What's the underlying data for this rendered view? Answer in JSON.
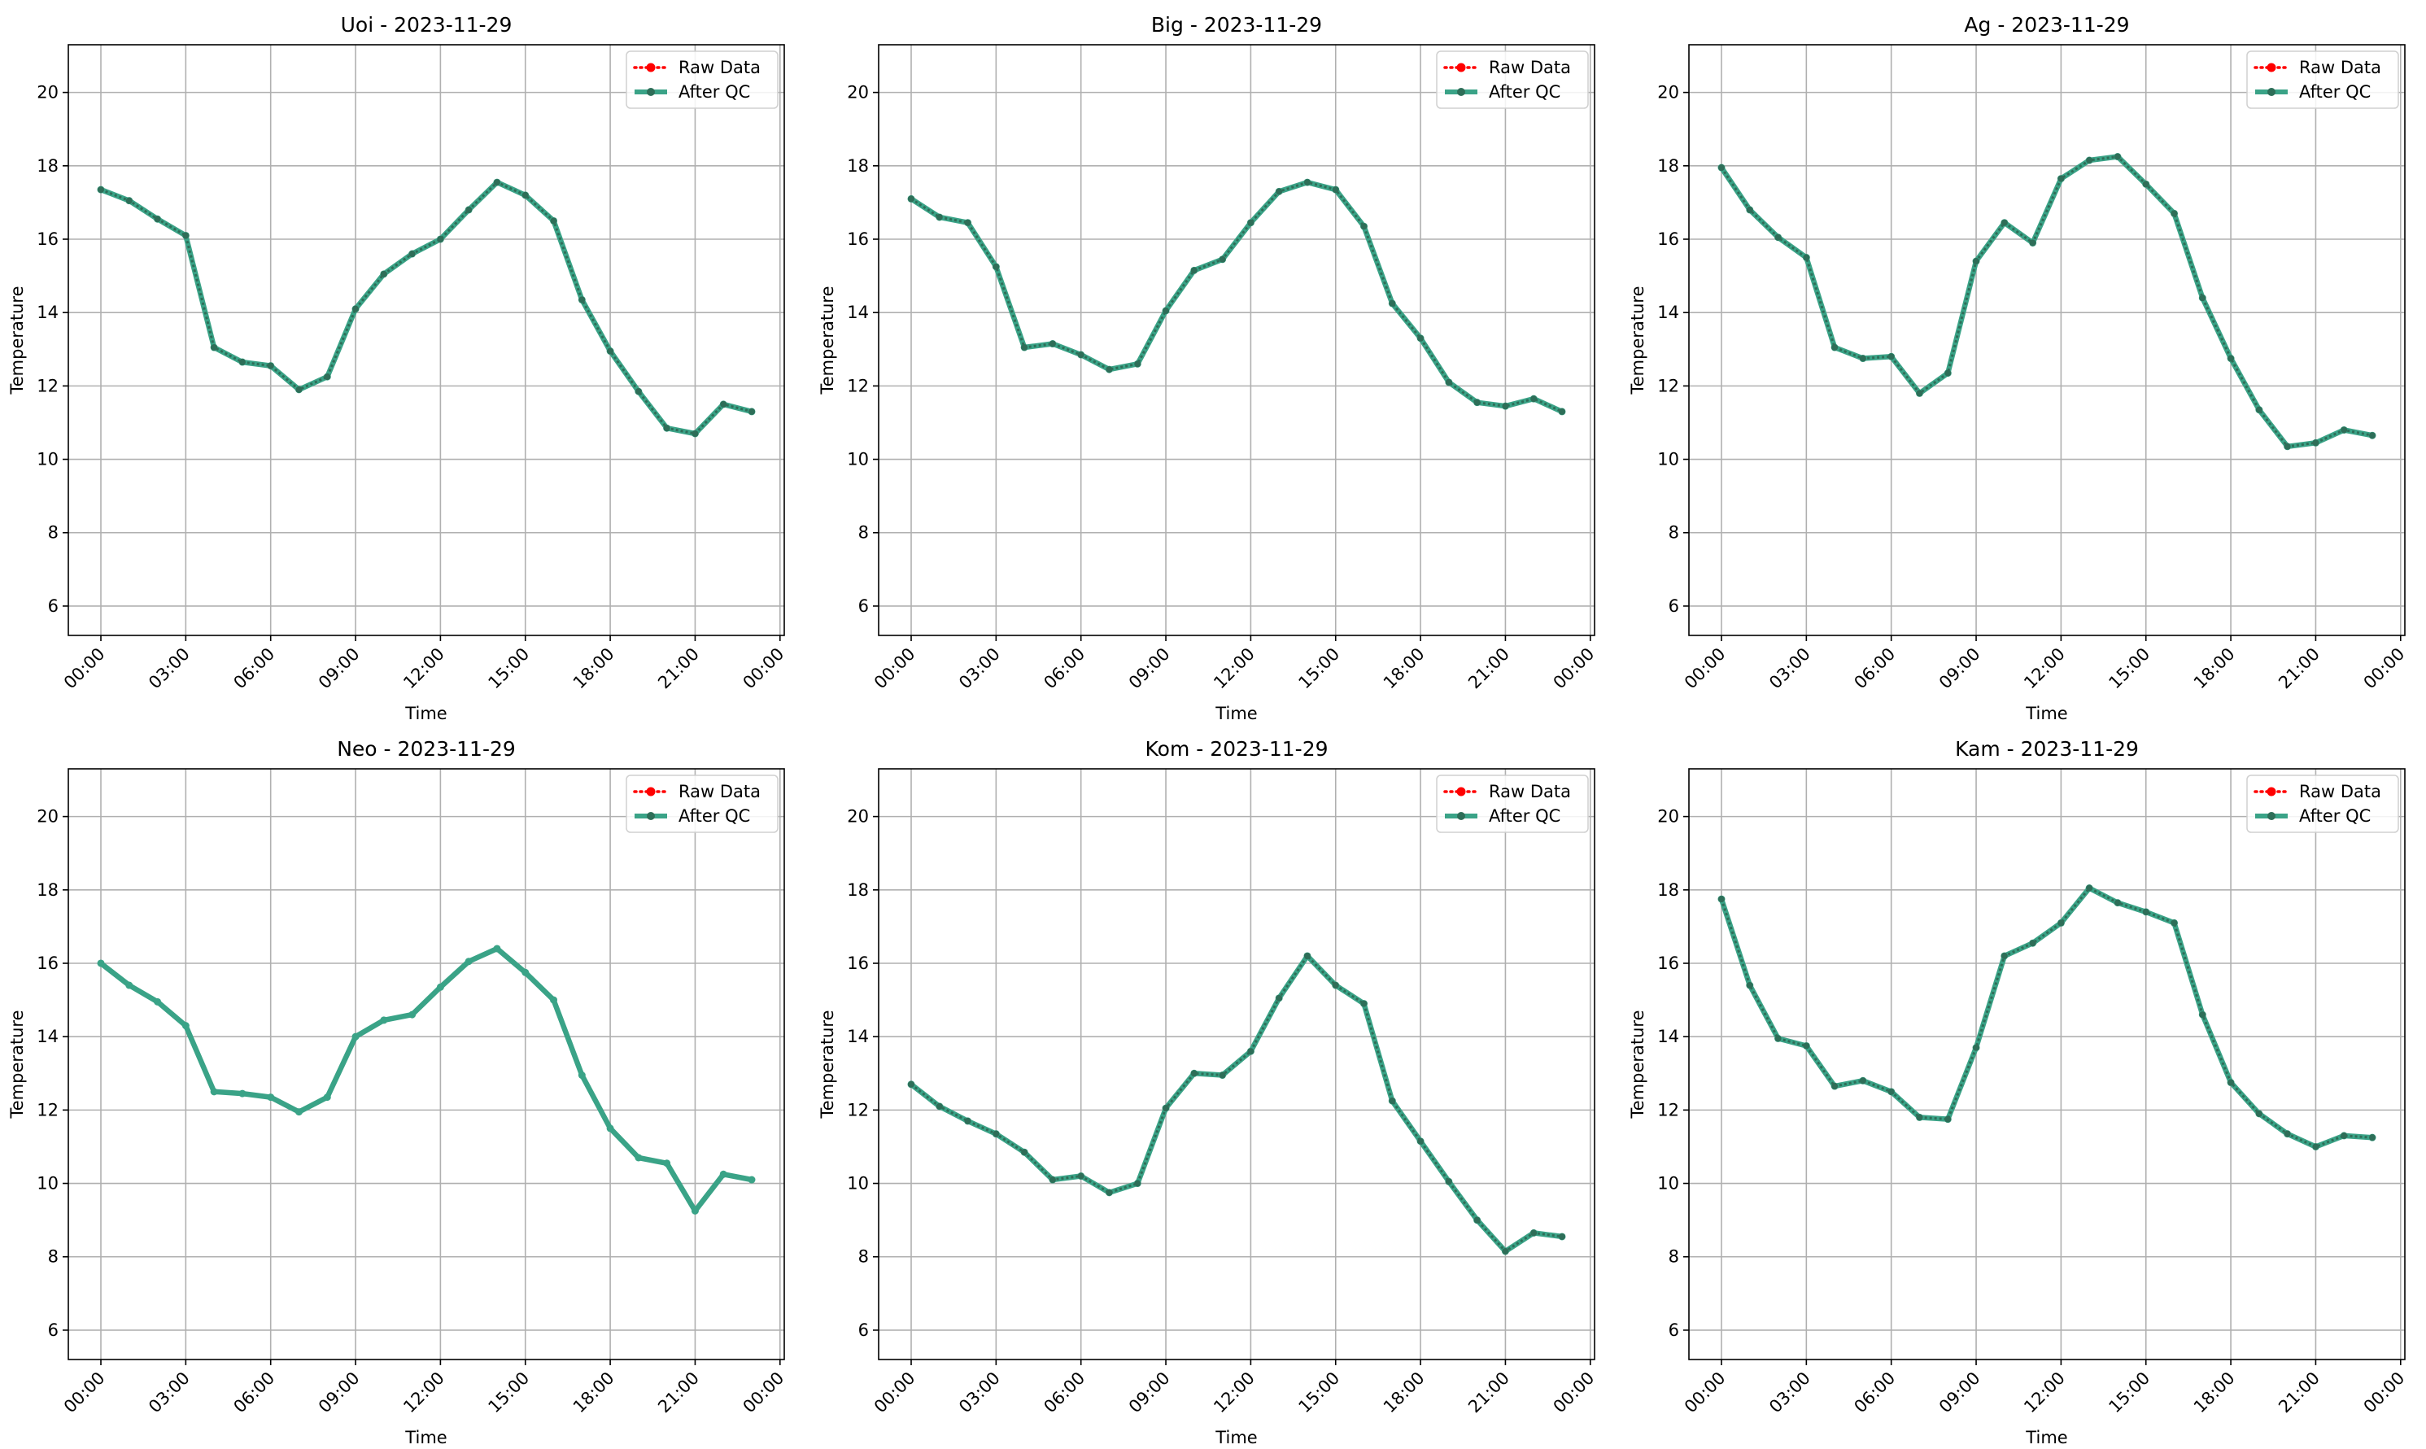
{
  "legend": {
    "raw_label": "Raw Data",
    "qc_label": "After QC",
    "placement": "upper-right"
  },
  "colors": {
    "raw": "#ff0000",
    "qc": "#3aa387",
    "qc_overlay": "#2e6e58",
    "grid": "#b0b0b0"
  },
  "chart_data": [
    {
      "type": "line",
      "title": "Uoi - 2023-11-29",
      "xlabel": "Time",
      "ylabel": "Temperature",
      "xticks": [
        "00:00",
        "03:00",
        "06:00",
        "09:00",
        "12:00",
        "15:00",
        "18:00",
        "21:00",
        "00:00"
      ],
      "xlim_hours": [
        -1.15,
        24.15
      ],
      "ylim": [
        5.2,
        21.3
      ],
      "yticks": [
        6,
        8,
        10,
        12,
        14,
        16,
        18,
        20
      ],
      "grid": true,
      "raw_visible": true,
      "x": [
        0,
        1,
        2,
        3,
        4,
        5,
        6,
        7,
        8,
        9,
        10,
        11,
        12,
        13,
        14,
        15,
        16,
        17,
        18,
        19,
        20,
        21,
        22,
        23
      ],
      "series": [
        {
          "name": "Raw Data",
          "values": [
            17.35,
            17.05,
            16.55,
            16.1,
            13.05,
            12.65,
            12.55,
            11.9,
            12.25,
            14.1,
            15.05,
            15.6,
            16.0,
            16.8,
            17.55,
            17.2,
            16.5,
            14.35,
            12.95,
            11.85,
            10.85,
            10.7,
            11.5,
            11.3
          ]
        },
        {
          "name": "After QC",
          "values": [
            17.35,
            17.05,
            16.55,
            16.1,
            13.05,
            12.65,
            12.55,
            11.9,
            12.25,
            14.1,
            15.05,
            15.6,
            16.0,
            16.8,
            17.55,
            17.2,
            16.5,
            14.35,
            12.95,
            11.85,
            10.85,
            10.7,
            11.5,
            11.3
          ]
        }
      ]
    },
    {
      "type": "line",
      "title": "Big - 2023-11-29",
      "xlabel": "Time",
      "ylabel": "Temperature",
      "xticks": [
        "00:00",
        "03:00",
        "06:00",
        "09:00",
        "12:00",
        "15:00",
        "18:00",
        "21:00",
        "00:00"
      ],
      "xlim_hours": [
        -1.15,
        24.15
      ],
      "ylim": [
        5.2,
        21.3
      ],
      "yticks": [
        6,
        8,
        10,
        12,
        14,
        16,
        18,
        20
      ],
      "grid": true,
      "raw_visible": true,
      "x": [
        0,
        1,
        2,
        3,
        4,
        5,
        6,
        7,
        8,
        9,
        10,
        11,
        12,
        13,
        14,
        15,
        16,
        17,
        18,
        19,
        20,
        21,
        22,
        23
      ],
      "series": [
        {
          "name": "Raw Data",
          "values": [
            17.1,
            16.6,
            16.45,
            15.25,
            13.05,
            13.15,
            12.85,
            12.45,
            12.6,
            14.05,
            15.15,
            15.45,
            16.45,
            17.3,
            17.55,
            17.35,
            16.35,
            14.25,
            13.3,
            12.1,
            11.55,
            11.45,
            11.65,
            11.3
          ]
        },
        {
          "name": "After QC",
          "values": [
            17.1,
            16.6,
            16.45,
            15.25,
            13.05,
            13.15,
            12.85,
            12.45,
            12.6,
            14.05,
            15.15,
            15.45,
            16.45,
            17.3,
            17.55,
            17.35,
            16.35,
            14.25,
            13.3,
            12.1,
            11.55,
            11.45,
            11.65,
            11.3
          ]
        }
      ]
    },
    {
      "type": "line",
      "title": "Ag - 2023-11-29",
      "xlabel": "Time",
      "ylabel": "Temperature",
      "xticks": [
        "00:00",
        "03:00",
        "06:00",
        "09:00",
        "12:00",
        "15:00",
        "18:00",
        "21:00",
        "00:00"
      ],
      "xlim_hours": [
        -1.15,
        24.15
      ],
      "ylim": [
        5.2,
        21.3
      ],
      "yticks": [
        6,
        8,
        10,
        12,
        14,
        16,
        18,
        20
      ],
      "grid": true,
      "raw_visible": true,
      "x": [
        0,
        1,
        2,
        3,
        4,
        5,
        6,
        7,
        8,
        9,
        10,
        11,
        12,
        13,
        14,
        15,
        16,
        17,
        18,
        19,
        20,
        21,
        22,
        23
      ],
      "series": [
        {
          "name": "Raw Data",
          "values": [
            17.95,
            16.8,
            16.05,
            15.5,
            13.05,
            12.75,
            12.8,
            11.8,
            12.35,
            15.4,
            16.45,
            15.9,
            17.65,
            18.15,
            18.25,
            17.5,
            16.7,
            14.4,
            12.75,
            11.35,
            10.35,
            10.45,
            10.8,
            10.65
          ]
        },
        {
          "name": "After QC",
          "values": [
            17.95,
            16.8,
            16.05,
            15.5,
            13.05,
            12.75,
            12.8,
            11.8,
            12.35,
            15.4,
            16.45,
            15.9,
            17.65,
            18.15,
            18.25,
            17.5,
            16.7,
            14.4,
            12.75,
            11.35,
            10.35,
            10.45,
            10.8,
            10.65
          ]
        }
      ]
    },
    {
      "type": "line",
      "title": "Neo - 2023-11-29",
      "xlabel": "Time",
      "ylabel": "Temperature",
      "xticks": [
        "00:00",
        "03:00",
        "06:00",
        "09:00",
        "12:00",
        "15:00",
        "18:00",
        "21:00",
        "00:00"
      ],
      "xlim_hours": [
        -1.15,
        24.15
      ],
      "ylim": [
        5.2,
        21.3
      ],
      "yticks": [
        6,
        8,
        10,
        12,
        14,
        16,
        18,
        20
      ],
      "grid": true,
      "raw_visible": false,
      "x": [
        0,
        1,
        2,
        3,
        4,
        5,
        6,
        7,
        8,
        9,
        10,
        11,
        12,
        13,
        14,
        15,
        16,
        17,
        18,
        19,
        20,
        21,
        22,
        23
      ],
      "series": [
        {
          "name": "Raw Data",
          "values": [
            16.0,
            15.4,
            14.95,
            14.3,
            12.5,
            12.45,
            12.35,
            11.95,
            12.35,
            14.0,
            14.45,
            14.6,
            15.35,
            16.05,
            16.4,
            15.75,
            15.0,
            12.95,
            11.5,
            10.7,
            10.55,
            9.25,
            10.25,
            10.1
          ]
        },
        {
          "name": "After QC",
          "values": [
            16.0,
            15.4,
            14.95,
            14.3,
            12.5,
            12.45,
            12.35,
            11.95,
            12.35,
            14.0,
            14.45,
            14.6,
            15.35,
            16.05,
            16.4,
            15.75,
            15.0,
            12.95,
            11.5,
            10.7,
            10.55,
            9.25,
            10.25,
            10.1
          ]
        }
      ]
    },
    {
      "type": "line",
      "title": "Kom - 2023-11-29",
      "xlabel": "Time",
      "ylabel": "Temperature",
      "xticks": [
        "00:00",
        "03:00",
        "06:00",
        "09:00",
        "12:00",
        "15:00",
        "18:00",
        "21:00",
        "00:00"
      ],
      "xlim_hours": [
        -1.15,
        24.15
      ],
      "ylim": [
        5.2,
        21.3
      ],
      "yticks": [
        6,
        8,
        10,
        12,
        14,
        16,
        18,
        20
      ],
      "grid": true,
      "raw_visible": true,
      "x": [
        0,
        1,
        2,
        3,
        4,
        5,
        6,
        7,
        8,
        9,
        10,
        11,
        12,
        13,
        14,
        15,
        16,
        17,
        18,
        19,
        20,
        21,
        22,
        23
      ],
      "series": [
        {
          "name": "Raw Data",
          "values": [
            12.7,
            12.1,
            11.7,
            11.35,
            10.85,
            10.1,
            10.2,
            9.75,
            10.0,
            12.05,
            13.0,
            12.95,
            13.6,
            15.05,
            16.2,
            15.4,
            14.9,
            12.25,
            11.15,
            10.05,
            9.0,
            8.15,
            8.65,
            8.55
          ]
        },
        {
          "name": "After QC",
          "values": [
            12.7,
            12.1,
            11.7,
            11.35,
            10.85,
            10.1,
            10.2,
            9.75,
            10.0,
            12.05,
            13.0,
            12.95,
            13.6,
            15.05,
            16.2,
            15.4,
            14.9,
            12.25,
            11.15,
            10.05,
            9.0,
            8.15,
            8.65,
            8.55
          ]
        }
      ]
    },
    {
      "type": "line",
      "title": "Kam - 2023-11-29",
      "xlabel": "Time",
      "ylabel": "Temperature",
      "xticks": [
        "00:00",
        "03:00",
        "06:00",
        "09:00",
        "12:00",
        "15:00",
        "18:00",
        "21:00",
        "00:00"
      ],
      "xlim_hours": [
        -1.15,
        24.15
      ],
      "ylim": [
        5.2,
        21.3
      ],
      "yticks": [
        6,
        8,
        10,
        12,
        14,
        16,
        18,
        20
      ],
      "grid": true,
      "raw_visible": true,
      "x": [
        0,
        1,
        2,
        3,
        4,
        5,
        6,
        7,
        8,
        9,
        10,
        11,
        12,
        13,
        14,
        15,
        16,
        17,
        18,
        19,
        20,
        21,
        22,
        23
      ],
      "series": [
        {
          "name": "Raw Data",
          "values": [
            17.75,
            15.4,
            13.95,
            13.75,
            12.65,
            12.8,
            12.5,
            11.8,
            11.75,
            13.7,
            16.2,
            16.55,
            17.1,
            18.05,
            17.65,
            17.4,
            17.1,
            14.6,
            12.75,
            11.9,
            11.35,
            11.0,
            11.3,
            11.25
          ]
        },
        {
          "name": "After QC",
          "values": [
            17.75,
            15.4,
            13.95,
            13.75,
            12.65,
            12.8,
            12.5,
            11.8,
            11.75,
            13.7,
            16.2,
            16.55,
            17.1,
            18.05,
            17.65,
            17.4,
            17.1,
            14.6,
            12.75,
            11.9,
            11.35,
            11.0,
            11.3,
            11.25
          ]
        }
      ]
    }
  ]
}
